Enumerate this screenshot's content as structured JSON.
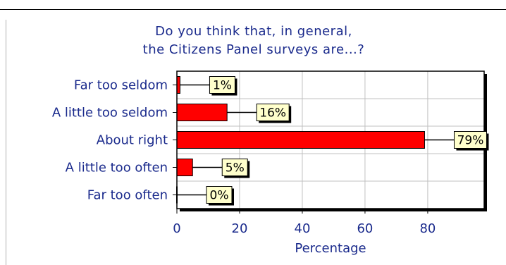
{
  "chart_data": {
    "type": "bar",
    "orientation": "horizontal",
    "title_lines": [
      "Do you think that, in general,",
      "the Citizens Panel surveys are...?"
    ],
    "xlabel": "Percentage",
    "ylabel": "",
    "categories": [
      "Far too seldom",
      "A little too seldom",
      "About right",
      "A little too often",
      "Far too often"
    ],
    "values": [
      1,
      16,
      79,
      5,
      0
    ],
    "data_labels": [
      "1%",
      "16%",
      "79%",
      "5%",
      "0%"
    ],
    "xlim": [
      0,
      98
    ],
    "xticks": [
      0,
      20,
      40,
      60,
      80
    ],
    "grid": true,
    "legend": "none",
    "colors": {
      "bar": "#ff0000",
      "label_bg": "#ffffcc",
      "text": "#1a2a8c",
      "grid": "#c0c0c0",
      "label_shadow": "#000000"
    }
  }
}
